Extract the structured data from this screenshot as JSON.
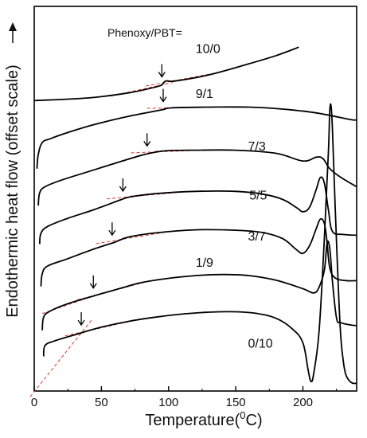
{
  "chart_data": {
    "type": "line",
    "title": "",
    "xlabel": "Temperature(",
    "xlabel_sup": "0",
    "xlabel_unit": "C)",
    "ylabel": "Endothermic heat flow (offset scale)",
    "legend_header": "Phenoxy/PBT=",
    "xlim": [
      0,
      240
    ],
    "ylim": [
      0,
      100
    ],
    "xticks": [
      0,
      50,
      100,
      150,
      200
    ],
    "y_ticks_shown": false,
    "grid": false,
    "annotations": {
      "arrows_mark": "glass transition",
      "tangent_lines": "red dashed"
    },
    "series": [
      {
        "name": "10/0",
        "tg": 95,
        "label_x": 113,
        "points": [
          [
            0,
            75.5
          ],
          [
            40,
            76.2
          ],
          [
            70,
            77.5
          ],
          [
            90,
            79
          ],
          [
            95,
            79.6
          ],
          [
            98,
            80.6
          ],
          [
            105,
            80.6
          ],
          [
            130,
            82.2
          ],
          [
            160,
            85.1
          ],
          [
            180,
            87.2
          ],
          [
            197,
            89.4
          ]
        ]
      },
      {
        "name": "9/1",
        "tg": 96,
        "label_x": 113,
        "points": [
          [
            2,
            57.8
          ],
          [
            3,
            61.5
          ],
          [
            6,
            64.6
          ],
          [
            12,
            65.6
          ],
          [
            25,
            67.2
          ],
          [
            45,
            69.3
          ],
          [
            70,
            71.4
          ],
          [
            95,
            73.1
          ],
          [
            102,
            73.6
          ],
          [
            130,
            73.8
          ],
          [
            160,
            73.8
          ],
          [
            185,
            73.3
          ],
          [
            210,
            72.3
          ],
          [
            235,
            70.6
          ],
          [
            240,
            70.5
          ]
        ]
      },
      {
        "name": "7/3",
        "tg": 84,
        "label_x": 152,
        "points": [
          [
            3,
            48.2
          ],
          [
            4,
            51.5
          ],
          [
            8,
            53.1
          ],
          [
            20,
            54.8
          ],
          [
            40,
            57.0
          ],
          [
            60,
            59.2
          ],
          [
            80,
            61.3
          ],
          [
            90,
            62.1
          ],
          [
            100,
            62.5
          ],
          [
            120,
            62.6
          ],
          [
            150,
            62.6
          ],
          [
            180,
            61.8
          ],
          [
            200,
            59.8
          ],
          [
            210,
            60.8
          ],
          [
            215,
            60.4
          ],
          [
            220,
            57.8
          ],
          [
            228,
            55.6
          ],
          [
            240,
            53.1
          ]
        ]
      },
      {
        "name": "5/5",
        "tg": 66,
        "label_x": 153,
        "points": [
          [
            4,
            38.2
          ],
          [
            5,
            41.0
          ],
          [
            10,
            42.8
          ],
          [
            25,
            44.9
          ],
          [
            45,
            47.2
          ],
          [
            65,
            49.8
          ],
          [
            72,
            50.5
          ],
          [
            90,
            51.3
          ],
          [
            120,
            51.9
          ],
          [
            150,
            51.9
          ],
          [
            170,
            51.2
          ],
          [
            185,
            49.8
          ],
          [
            196,
            47.5
          ],
          [
            200,
            46.6
          ],
          [
            205,
            47.8
          ],
          [
            210,
            52.5
          ],
          [
            213,
            55.5
          ],
          [
            216,
            54.0
          ],
          [
            219,
            47.0
          ],
          [
            222,
            41.5
          ],
          [
            230,
            40.7
          ],
          [
            240,
            40.5
          ]
        ]
      },
      {
        "name": "3/7",
        "tg": 58,
        "label_x": 152,
        "points": [
          [
            5,
            27.2
          ],
          [
            6,
            30.5
          ],
          [
            10,
            32.5
          ],
          [
            25,
            34.4
          ],
          [
            45,
            37.0
          ],
          [
            60,
            38.7
          ],
          [
            70,
            40.0
          ],
          [
            90,
            41.1
          ],
          [
            120,
            41.9
          ],
          [
            150,
            41.8
          ],
          [
            170,
            41.2
          ],
          [
            185,
            39.6
          ],
          [
            195,
            36.8
          ],
          [
            200,
            35.8
          ],
          [
            205,
            37.8
          ],
          [
            210,
            42.3
          ],
          [
            213,
            44.7
          ],
          [
            216,
            43.5
          ],
          [
            218,
            38.5
          ],
          [
            220,
            32.0
          ],
          [
            224,
            29.4
          ],
          [
            232,
            28.7
          ],
          [
            240,
            28.7
          ]
        ]
      },
      {
        "name": "1/9",
        "tg": 44,
        "label_x": 113,
        "points": [
          [
            6,
            15.8
          ],
          [
            7,
            19.2
          ],
          [
            12,
            20.8
          ],
          [
            25,
            22.7
          ],
          [
            45,
            24.8
          ],
          [
            65,
            26.8
          ],
          [
            80,
            28.2
          ],
          [
            100,
            29.3
          ],
          [
            120,
            30.0
          ],
          [
            140,
            30.3
          ],
          [
            160,
            30.0
          ],
          [
            180,
            28.8
          ],
          [
            200,
            26.6
          ],
          [
            208,
            25.5
          ],
          [
            212,
            27.0
          ],
          [
            216,
            31.5
          ],
          [
            218,
            38.5
          ],
          [
            220,
            37.0
          ],
          [
            222,
            28.5
          ],
          [
            225,
            19.0
          ],
          [
            228,
            17.8
          ],
          [
            235,
            17.2
          ],
          [
            240,
            17.0
          ]
        ]
      },
      {
        "name": "0/10",
        "tg": 35,
        "label_x": 152,
        "points": [
          [
            7,
            9.0
          ],
          [
            8,
            11.8
          ],
          [
            15,
            13.0
          ],
          [
            30,
            14.6
          ],
          [
            50,
            16.6
          ],
          [
            70,
            18.1
          ],
          [
            90,
            19.2
          ],
          [
            110,
            20.0
          ],
          [
            130,
            20.5
          ],
          [
            150,
            20.6
          ],
          [
            165,
            20.2
          ],
          [
            180,
            18.9
          ],
          [
            192,
            16.2
          ],
          [
            200,
            12.5
          ],
          [
            204,
            5.2
          ],
          [
            206,
            2.5
          ],
          [
            208,
            4.5
          ],
          [
            212,
            15.5
          ],
          [
            216,
            40.0
          ],
          [
            219,
            62.5
          ],
          [
            220,
            73.0
          ],
          [
            221,
            74.0
          ],
          [
            222,
            68.0
          ],
          [
            224,
            48.0
          ],
          [
            226,
            30.0
          ],
          [
            228,
            15.0
          ],
          [
            230,
            8.0
          ],
          [
            232,
            4.2
          ],
          [
            236,
            2.2
          ],
          [
            240,
            2.0
          ]
        ]
      }
    ]
  }
}
